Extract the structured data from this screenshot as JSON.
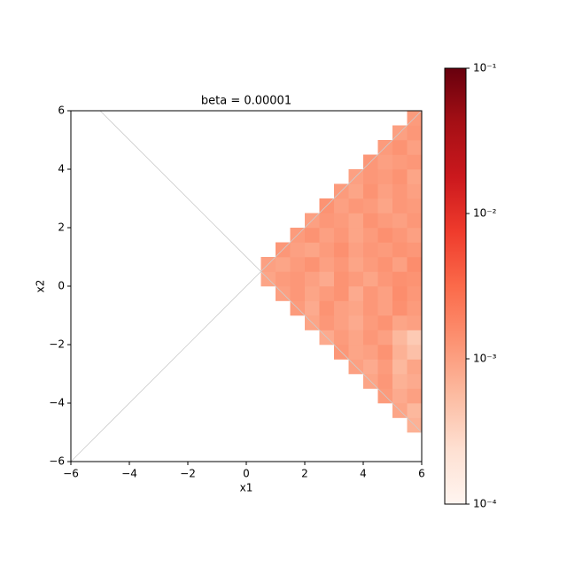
{
  "chart_data": {
    "type": "heatmap",
    "title": "beta = 0.00001",
    "xlabel": "x1",
    "ylabel": "x2",
    "xlim": [
      -6,
      6
    ],
    "ylim": [
      -6,
      6
    ],
    "xticks": [
      {
        "value": -6,
        "label": "−6"
      },
      {
        "value": -4,
        "label": "−4"
      },
      {
        "value": -2,
        "label": "−2"
      },
      0,
      2,
      4,
      6
    ],
    "yticks": [
      {
        "value": -6,
        "label": "−6"
      },
      {
        "value": -4,
        "label": "−4"
      },
      {
        "value": -2,
        "label": "−2"
      },
      0,
      2,
      4,
      6
    ],
    "x_bins": [
      -6,
      -5.5,
      -5,
      -4.5,
      -4,
      -3.5,
      -3,
      -2.5,
      -2,
      -1.5,
      -1,
      -0.5,
      0,
      0.5,
      1,
      1.5,
      2,
      2.5,
      3,
      3.5,
      4,
      4.5,
      5,
      5.5,
      6
    ],
    "y_bins": [
      -6,
      -5.5,
      -5,
      -4.5,
      -4,
      -3.5,
      -3,
      -2.5,
      -2,
      -1.5,
      -1,
      -0.5,
      0,
      0.5,
      1,
      1.5,
      2,
      2.5,
      3,
      3.5,
      4,
      4.5,
      5,
      5.5,
      6
    ],
    "values": [
      [
        null,
        null,
        null,
        null,
        null,
        null,
        null,
        null,
        null,
        null,
        null,
        null,
        null,
        null,
        null,
        null,
        null,
        null,
        null,
        null,
        null,
        null,
        null,
        null
      ],
      [
        null,
        null,
        null,
        null,
        null,
        null,
        null,
        null,
        null,
        null,
        null,
        null,
        null,
        null,
        null,
        null,
        null,
        null,
        null,
        null,
        null,
        null,
        null,
        null
      ],
      [
        null,
        null,
        null,
        null,
        null,
        null,
        null,
        null,
        null,
        null,
        null,
        null,
        null,
        null,
        null,
        null,
        null,
        null,
        null,
        null,
        null,
        null,
        null,
        0.0007
      ],
      [
        null,
        null,
        null,
        null,
        null,
        null,
        null,
        null,
        null,
        null,
        null,
        null,
        null,
        null,
        null,
        null,
        null,
        null,
        null,
        null,
        null,
        null,
        0.0009,
        0.0006
      ],
      [
        null,
        null,
        null,
        null,
        null,
        null,
        null,
        null,
        null,
        null,
        null,
        null,
        null,
        null,
        null,
        null,
        null,
        null,
        null,
        null,
        null,
        0.0011,
        0.0008,
        0.001
      ],
      [
        null,
        null,
        null,
        null,
        null,
        null,
        null,
        null,
        null,
        null,
        null,
        null,
        null,
        null,
        null,
        null,
        null,
        null,
        null,
        null,
        0.0009,
        0.0012,
        0.0007,
        0.0008
      ],
      [
        null,
        null,
        null,
        null,
        null,
        null,
        null,
        null,
        null,
        null,
        null,
        null,
        null,
        null,
        null,
        null,
        null,
        null,
        null,
        0.001,
        0.0008,
        0.0011,
        0.0006,
        0.0009
      ],
      [
        null,
        null,
        null,
        null,
        null,
        null,
        null,
        null,
        null,
        null,
        null,
        null,
        null,
        null,
        null,
        null,
        null,
        null,
        0.0012,
        0.0009,
        0.001,
        0.0013,
        0.0007,
        0.0005
      ],
      [
        null,
        null,
        null,
        null,
        null,
        null,
        null,
        null,
        null,
        null,
        null,
        null,
        null,
        null,
        null,
        null,
        null,
        0.0008,
        0.0011,
        0.0009,
        0.0012,
        0.001,
        0.0006,
        0.0004
      ],
      [
        null,
        null,
        null,
        null,
        null,
        null,
        null,
        null,
        null,
        null,
        null,
        null,
        null,
        null,
        null,
        null,
        0.0009,
        0.0012,
        0.001,
        0.0008,
        0.0011,
        0.0013,
        0.0009,
        0.001
      ],
      [
        null,
        null,
        null,
        null,
        null,
        null,
        null,
        null,
        null,
        null,
        null,
        null,
        null,
        null,
        null,
        0.0011,
        0.0008,
        0.0013,
        0.001,
        0.0009,
        0.0012,
        0.001,
        0.0014,
        0.0011
      ],
      [
        null,
        null,
        null,
        null,
        null,
        null,
        null,
        null,
        null,
        null,
        null,
        null,
        null,
        null,
        0.001,
        0.0012,
        0.0009,
        0.0011,
        0.0013,
        0.0008,
        0.0012,
        0.001,
        0.0015,
        0.0012
      ],
      [
        null,
        null,
        null,
        null,
        null,
        null,
        null,
        null,
        null,
        null,
        null,
        null,
        null,
        0.0009,
        0.0011,
        0.0012,
        0.001,
        0.0008,
        0.0013,
        0.0011,
        0.0009,
        0.0012,
        0.0014,
        0.0013
      ],
      [
        null,
        null,
        null,
        null,
        null,
        null,
        null,
        null,
        null,
        null,
        null,
        null,
        null,
        0.001,
        0.0009,
        0.0011,
        0.0013,
        0.001,
        0.0012,
        0.0009,
        0.0011,
        0.0013,
        0.001,
        0.0015
      ],
      [
        null,
        null,
        null,
        null,
        null,
        null,
        null,
        null,
        null,
        null,
        null,
        null,
        null,
        null,
        0.0012,
        0.001,
        0.0009,
        0.0011,
        0.0014,
        0.001,
        0.0012,
        0.0011,
        0.0013,
        0.0012
      ],
      [
        null,
        null,
        null,
        null,
        null,
        null,
        null,
        null,
        null,
        null,
        null,
        null,
        null,
        null,
        null,
        0.0011,
        0.0013,
        0.001,
        0.0012,
        0.0009,
        0.0011,
        0.0014,
        0.0012,
        0.001
      ],
      [
        null,
        null,
        null,
        null,
        null,
        null,
        null,
        null,
        null,
        null,
        null,
        null,
        null,
        null,
        null,
        null,
        0.001,
        0.0012,
        0.0011,
        0.0009,
        0.0013,
        0.0011,
        0.001,
        0.0012
      ],
      [
        null,
        null,
        null,
        null,
        null,
        null,
        null,
        null,
        null,
        null,
        null,
        null,
        null,
        null,
        null,
        null,
        null,
        0.0013,
        0.001,
        0.0012,
        0.0011,
        0.0009,
        0.0012,
        0.0011
      ],
      [
        null,
        null,
        null,
        null,
        null,
        null,
        null,
        null,
        null,
        null,
        null,
        null,
        null,
        null,
        null,
        null,
        null,
        null,
        0.0011,
        0.0009,
        0.0013,
        0.001,
        0.0012,
        0.001
      ],
      [
        null,
        null,
        null,
        null,
        null,
        null,
        null,
        null,
        null,
        null,
        null,
        null,
        null,
        null,
        null,
        null,
        null,
        null,
        null,
        0.001,
        0.0012,
        0.0011,
        0.0013,
        0.0009
      ],
      [
        null,
        null,
        null,
        null,
        null,
        null,
        null,
        null,
        null,
        null,
        null,
        null,
        null,
        null,
        null,
        null,
        null,
        null,
        null,
        null,
        0.0012,
        0.001,
        0.0011,
        0.0012
      ],
      [
        null,
        null,
        null,
        null,
        null,
        null,
        null,
        null,
        null,
        null,
        null,
        null,
        null,
        null,
        null,
        null,
        null,
        null,
        null,
        null,
        null,
        0.0011,
        0.0013,
        0.001
      ],
      [
        null,
        null,
        null,
        null,
        null,
        null,
        null,
        null,
        null,
        null,
        null,
        null,
        null,
        null,
        null,
        null,
        null,
        null,
        null,
        null,
        null,
        null,
        0.001,
        0.0012
      ],
      [
        null,
        null,
        null,
        null,
        null,
        null,
        null,
        null,
        null,
        null,
        null,
        null,
        null,
        null,
        null,
        null,
        null,
        null,
        null,
        null,
        null,
        null,
        null,
        0.0011
      ]
    ],
    "lines": [
      {
        "x": [
          -6,
          6
        ],
        "y": [
          -6,
          6
        ],
        "color": "#cccccc"
      },
      {
        "x": [
          -5,
          6
        ],
        "y": [
          6,
          -5
        ],
        "color": "#cccccc"
      }
    ],
    "colorbar_scale": "log",
    "clim": [
      0.0001,
      0.1
    ],
    "cticks": [
      {
        "value": 0.0001,
        "label": "10⁻⁴"
      },
      {
        "value": 0.001,
        "label": "10⁻³"
      },
      {
        "value": 0.01,
        "label": "10⁻²"
      },
      {
        "value": 0.1,
        "label": "10⁻¹"
      }
    ],
    "colormap": [
      "#fff5f0",
      "#fee0d2",
      "#fcbba1",
      "#fc9272",
      "#fb6a4a",
      "#ef3b2c",
      "#cb181d",
      "#a50f15",
      "#67000d"
    ]
  }
}
